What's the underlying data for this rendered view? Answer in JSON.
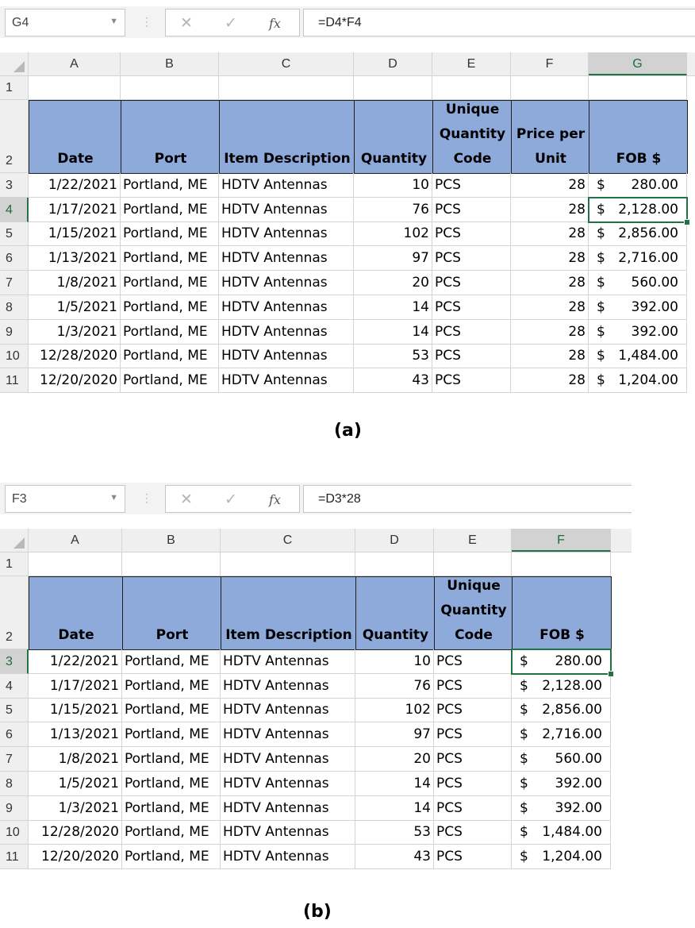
{
  "panels": [
    {
      "id": "a",
      "caption": "(a)",
      "name_box": "G4",
      "formula": "=D4*F4",
      "columns": [
        "A",
        "B",
        "C",
        "D",
        "E",
        "F",
        "G"
      ],
      "selected_column": "G",
      "selected_row": "4",
      "header_labels": [
        "Date",
        "Port",
        "Item Description",
        "Quantity",
        "Unique Quantity Code",
        "Price per Unit",
        "FOB $"
      ],
      "rows": [
        {
          "n": "3",
          "date": "1/22/2021",
          "port": "Portland, ME",
          "item": "HDTV Antennas",
          "qty": "10",
          "code": "PCS",
          "price": "28",
          "fob": "280.00"
        },
        {
          "n": "4",
          "date": "1/17/2021",
          "port": "Portland, ME",
          "item": "HDTV Antennas",
          "qty": "76",
          "code": "PCS",
          "price": "28",
          "fob": "2,128.00"
        },
        {
          "n": "5",
          "date": "1/15/2021",
          "port": "Portland, ME",
          "item": "HDTV Antennas",
          "qty": "102",
          "code": "PCS",
          "price": "28",
          "fob": "2,856.00"
        },
        {
          "n": "6",
          "date": "1/13/2021",
          "port": "Portland, ME",
          "item": "HDTV Antennas",
          "qty": "97",
          "code": "PCS",
          "price": "28",
          "fob": "2,716.00"
        },
        {
          "n": "7",
          "date": "1/8/2021",
          "port": "Portland, ME",
          "item": "HDTV Antennas",
          "qty": "20",
          "code": "PCS",
          "price": "28",
          "fob": "560.00"
        },
        {
          "n": "8",
          "date": "1/5/2021",
          "port": "Portland, ME",
          "item": "HDTV Antennas",
          "qty": "14",
          "code": "PCS",
          "price": "28",
          "fob": "392.00"
        },
        {
          "n": "9",
          "date": "1/3/2021",
          "port": "Portland, ME",
          "item": "HDTV Antennas",
          "qty": "14",
          "code": "PCS",
          "price": "28",
          "fob": "392.00"
        },
        {
          "n": "10",
          "date": "12/28/2020",
          "port": "Portland, ME",
          "item": "HDTV Antennas",
          "qty": "53",
          "code": "PCS",
          "price": "28",
          "fob": "1,484.00"
        },
        {
          "n": "11",
          "date": "12/20/2020",
          "port": "Portland, ME",
          "item": "HDTV Antennas",
          "qty": "43",
          "code": "PCS",
          "price": "28",
          "fob": "1,204.00"
        }
      ]
    },
    {
      "id": "b",
      "caption": "(b)",
      "name_box": "F3",
      "formula": "=D3*28",
      "columns": [
        "A",
        "B",
        "C",
        "D",
        "E",
        "F"
      ],
      "selected_column": "F",
      "selected_row": "3",
      "header_labels": [
        "Date",
        "Port",
        "Item Description",
        "Quantity",
        "Unique Quantity Code",
        "FOB $"
      ],
      "rows": [
        {
          "n": "3",
          "date": "1/22/2021",
          "port": "Portland, ME",
          "item": "HDTV Antennas",
          "qty": "10",
          "code": "PCS",
          "fob": "280.00"
        },
        {
          "n": "4",
          "date": "1/17/2021",
          "port": "Portland, ME",
          "item": "HDTV Antennas",
          "qty": "76",
          "code": "PCS",
          "fob": "2,128.00"
        },
        {
          "n": "5",
          "date": "1/15/2021",
          "port": "Portland, ME",
          "item": "HDTV Antennas",
          "qty": "102",
          "code": "PCS",
          "fob": "2,856.00"
        },
        {
          "n": "6",
          "date": "1/13/2021",
          "port": "Portland, ME",
          "item": "HDTV Antennas",
          "qty": "97",
          "code": "PCS",
          "fob": "2,716.00"
        },
        {
          "n": "7",
          "date": "1/8/2021",
          "port": "Portland, ME",
          "item": "HDTV Antennas",
          "qty": "20",
          "code": "PCS",
          "fob": "560.00"
        },
        {
          "n": "8",
          "date": "1/5/2021",
          "port": "Portland, ME",
          "item": "HDTV Antennas",
          "qty": "14",
          "code": "PCS",
          "fob": "392.00"
        },
        {
          "n": "9",
          "date": "1/3/2021",
          "port": "Portland, ME",
          "item": "HDTV Antennas",
          "qty": "14",
          "code": "PCS",
          "fob": "392.00"
        },
        {
          "n": "10",
          "date": "12/28/2020",
          "port": "Portland, ME",
          "item": "HDTV Antennas",
          "qty": "53",
          "code": "PCS",
          "fob": "1,484.00"
        },
        {
          "n": "11",
          "date": "12/20/2020",
          "port": "Portland, ME",
          "item": "HDTV Antennas",
          "qty": "43",
          "code": "PCS",
          "fob": "1,204.00"
        }
      ]
    }
  ],
  "currency_symbol": "$",
  "row_header_labels": [
    "1",
    "2"
  ],
  "icons": {
    "cancel": "close-icon",
    "enter": "check-icon",
    "function": "fx-icon"
  },
  "colors": {
    "header_fill": "#8eaadb",
    "selection": "#217346"
  }
}
